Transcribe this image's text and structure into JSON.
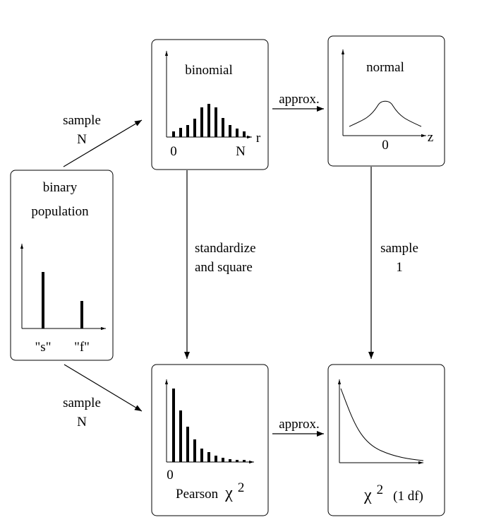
{
  "boxes": {
    "binary": {
      "title_line1": "binary",
      "title_line2": "population",
      "tick_s": "\"s\"",
      "tick_f": "\"f\""
    },
    "binomial": {
      "title": "binomial",
      "tick_start": "0",
      "tick_end": "N",
      "axis_label": "r"
    },
    "normal": {
      "title": "normal",
      "tick_center": "0",
      "axis_label": "z"
    },
    "pearson": {
      "tick_start": "0",
      "label_text": "Pearson",
      "label_symbol": "χ",
      "label_exp": "2"
    },
    "chi": {
      "label_symbol": "χ",
      "label_exp": "2",
      "label_df": "(1 df)"
    }
  },
  "edges": {
    "sample_top": {
      "line1": "sample",
      "line2": "N"
    },
    "sample_bottom": {
      "line1": "sample",
      "line2": "N"
    },
    "approx_top": {
      "label": "approx."
    },
    "approx_bottom": {
      "label": "approx."
    },
    "standardize": {
      "line1": "standardize",
      "line2": "and square"
    },
    "sample_one": {
      "line1": "sample",
      "line2": "1"
    }
  }
}
